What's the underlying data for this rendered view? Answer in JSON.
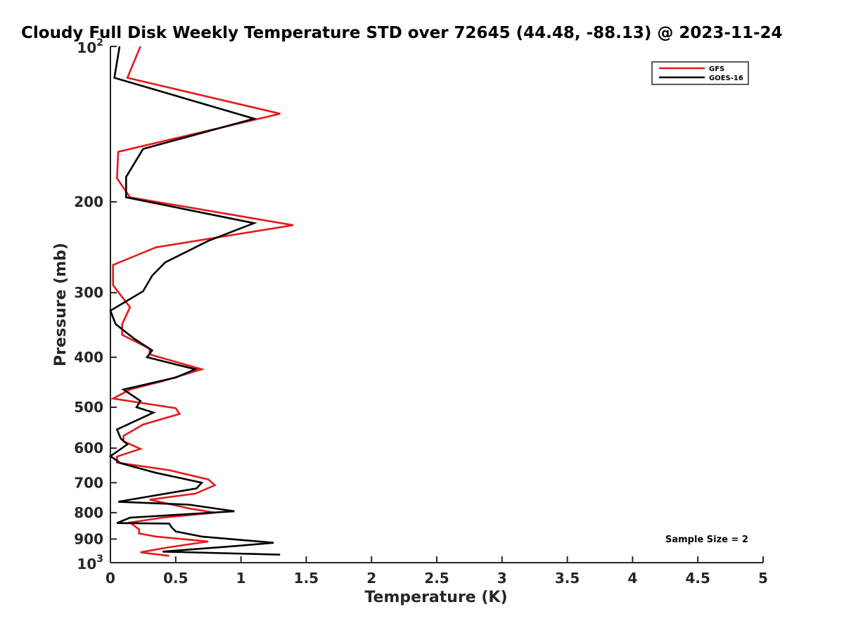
{
  "chart_data": {
    "type": "line",
    "title": "Cloudy Full Disk Weekly Temperature STD over 72645 (44.48, -88.13) @ 2023-11-24",
    "xlabel": "Temperature (K)",
    "ylabel": "Pressure (mb)",
    "xlim": [
      0,
      5
    ],
    "ylim": [
      100,
      1000
    ],
    "y_scale": "log",
    "y_reversed": true,
    "grid": false,
    "legend_position": "top-right",
    "x_ticks": [
      "0",
      "0.5",
      "1",
      "1.5",
      "2",
      "2.5",
      "3",
      "3.5",
      "4",
      "4.5",
      "5"
    ],
    "y_ticks": [
      {
        "value": 100,
        "base": "10",
        "exp": "2"
      },
      {
        "value": 200,
        "label": "200"
      },
      {
        "value": 300,
        "label": "300"
      },
      {
        "value": 400,
        "label": "400"
      },
      {
        "value": 500,
        "label": "500"
      },
      {
        "value": 600,
        "label": "600"
      },
      {
        "value": 700,
        "label": "700"
      },
      {
        "value": 800,
        "label": "800"
      },
      {
        "value": 900,
        "label": "900"
      },
      {
        "value": 1000,
        "base": "10",
        "exp": "3"
      }
    ],
    "annotation": "Sample Size = 2",
    "series": [
      {
        "name": "GFS",
        "color": "#e41a1c",
        "points": [
          [
            0.23,
            100
          ],
          [
            0.13,
            115
          ],
          [
            1.3,
            135
          ],
          [
            0.06,
            160
          ],
          [
            0.05,
            180
          ],
          [
            0.15,
            196
          ],
          [
            1.4,
            222
          ],
          [
            0.35,
            245
          ],
          [
            0.02,
            265
          ],
          [
            0.02,
            290
          ],
          [
            0.15,
            320
          ],
          [
            0.09,
            345
          ],
          [
            0.09,
            362
          ],
          [
            0.3,
            385
          ],
          [
            0.3,
            395
          ],
          [
            0.7,
            422
          ],
          [
            0.4,
            445
          ],
          [
            0.15,
            462
          ],
          [
            0.02,
            481
          ],
          [
            0.5,
            502
          ],
          [
            0.53,
            515
          ],
          [
            0.25,
            540
          ],
          [
            0.1,
            568
          ],
          [
            0.1,
            582
          ],
          [
            0.23,
            602
          ],
          [
            0.05,
            623
          ],
          [
            0.05,
            640
          ],
          [
            0.45,
            662
          ],
          [
            0.75,
            690
          ],
          [
            0.8,
            708
          ],
          [
            0.65,
            735
          ],
          [
            0.3,
            755
          ],
          [
            0.6,
            785
          ],
          [
            0.8,
            800
          ],
          [
            0.4,
            818
          ],
          [
            0.15,
            836
          ],
          [
            0.22,
            862
          ],
          [
            0.22,
            878
          ],
          [
            0.35,
            890
          ],
          [
            0.75,
            910
          ],
          [
            0.43,
            935
          ],
          [
            0.23,
            955
          ],
          [
            0.45,
            970
          ]
        ]
      },
      {
        "name": "GOES-16",
        "color": "#000000",
        "points": [
          [
            0.07,
            100
          ],
          [
            0.03,
            115
          ],
          [
            1.1,
            138
          ],
          [
            0.25,
            158
          ],
          [
            0.12,
            179
          ],
          [
            0.12,
            196
          ],
          [
            1.1,
            220
          ],
          [
            0.75,
            238
          ],
          [
            0.42,
            262
          ],
          [
            0.32,
            278
          ],
          [
            0.25,
            298
          ],
          [
            0.0,
            325
          ],
          [
            0.04,
            345
          ],
          [
            0.18,
            368
          ],
          [
            0.32,
            388
          ],
          [
            0.28,
            400
          ],
          [
            0.65,
            422
          ],
          [
            0.5,
            438
          ],
          [
            0.1,
            462
          ],
          [
            0.23,
            486
          ],
          [
            0.2,
            500
          ],
          [
            0.33,
            512
          ],
          [
            0.05,
            552
          ],
          [
            0.08,
            575
          ],
          [
            0.13,
            590
          ],
          [
            0.0,
            622
          ],
          [
            0.08,
            642
          ],
          [
            0.35,
            670
          ],
          [
            0.7,
            700
          ],
          [
            0.66,
            718
          ],
          [
            0.06,
            762
          ],
          [
            0.6,
            772
          ],
          [
            0.95,
            795
          ],
          [
            0.15,
            818
          ],
          [
            0.05,
            838
          ],
          [
            0.45,
            840
          ],
          [
            0.47,
            855
          ],
          [
            0.5,
            870
          ],
          [
            0.7,
            890
          ],
          [
            1.25,
            915
          ],
          [
            0.97,
            928
          ],
          [
            0.4,
            952
          ],
          [
            1.3,
            965
          ]
        ]
      }
    ]
  }
}
